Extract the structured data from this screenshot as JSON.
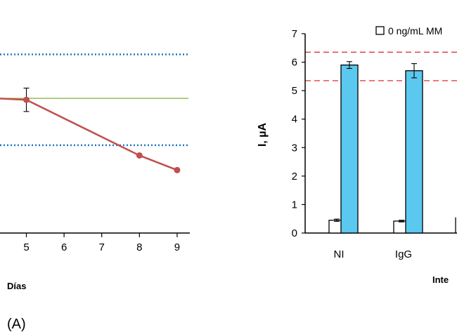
{
  "chart_data": [
    {
      "type": "line",
      "x": [
        5,
        8,
        9
      ],
      "series": [
        {
          "values": [
            4.55,
            2.65,
            2.15
          ],
          "color": "#c0504d",
          "error": [
            0.4,
            null,
            null
          ]
        }
      ],
      "x_ticks": [
        "5",
        "6",
        "7",
        "8",
        "9"
      ],
      "xlim": [
        4.3,
        9.3
      ],
      "ylim": [
        0,
        7
      ],
      "xlabel": "Días",
      "reference_lines": [
        {
          "y": 6.1,
          "color": "#1f77c4",
          "style": "dotted"
        },
        {
          "y": 4.6,
          "color": "#9bbb59",
          "style": "solid"
        },
        {
          "y": 3.0,
          "color": "#1f77c4",
          "style": "dotted"
        }
      ],
      "panel_label": "(A)"
    },
    {
      "type": "bar",
      "categories": [
        "NI",
        "IgG"
      ],
      "series": [
        {
          "name": "0 ng/mL MM",
          "values": [
            0.45,
            0.42
          ],
          "errors": [
            0.04,
            0.03
          ],
          "color": "#ffffff"
        },
        {
          "values": [
            5.9,
            5.7
          ],
          "errors": [
            0.12,
            0.25
          ],
          "color": "#5bc8f0"
        }
      ],
      "ylabel": "I, µA",
      "xlabel": "Inte",
      "ylim": [
        0,
        7
      ],
      "y_ticks": [
        "0",
        "1",
        "2",
        "3",
        "4",
        "5",
        "6",
        "7"
      ],
      "reference_lines": [
        {
          "y": 6.35,
          "color": "#e04040",
          "style": "dashed"
        },
        {
          "y": 5.35,
          "color": "#e04040",
          "style": "dashed"
        }
      ],
      "legend": "top-right"
    }
  ]
}
